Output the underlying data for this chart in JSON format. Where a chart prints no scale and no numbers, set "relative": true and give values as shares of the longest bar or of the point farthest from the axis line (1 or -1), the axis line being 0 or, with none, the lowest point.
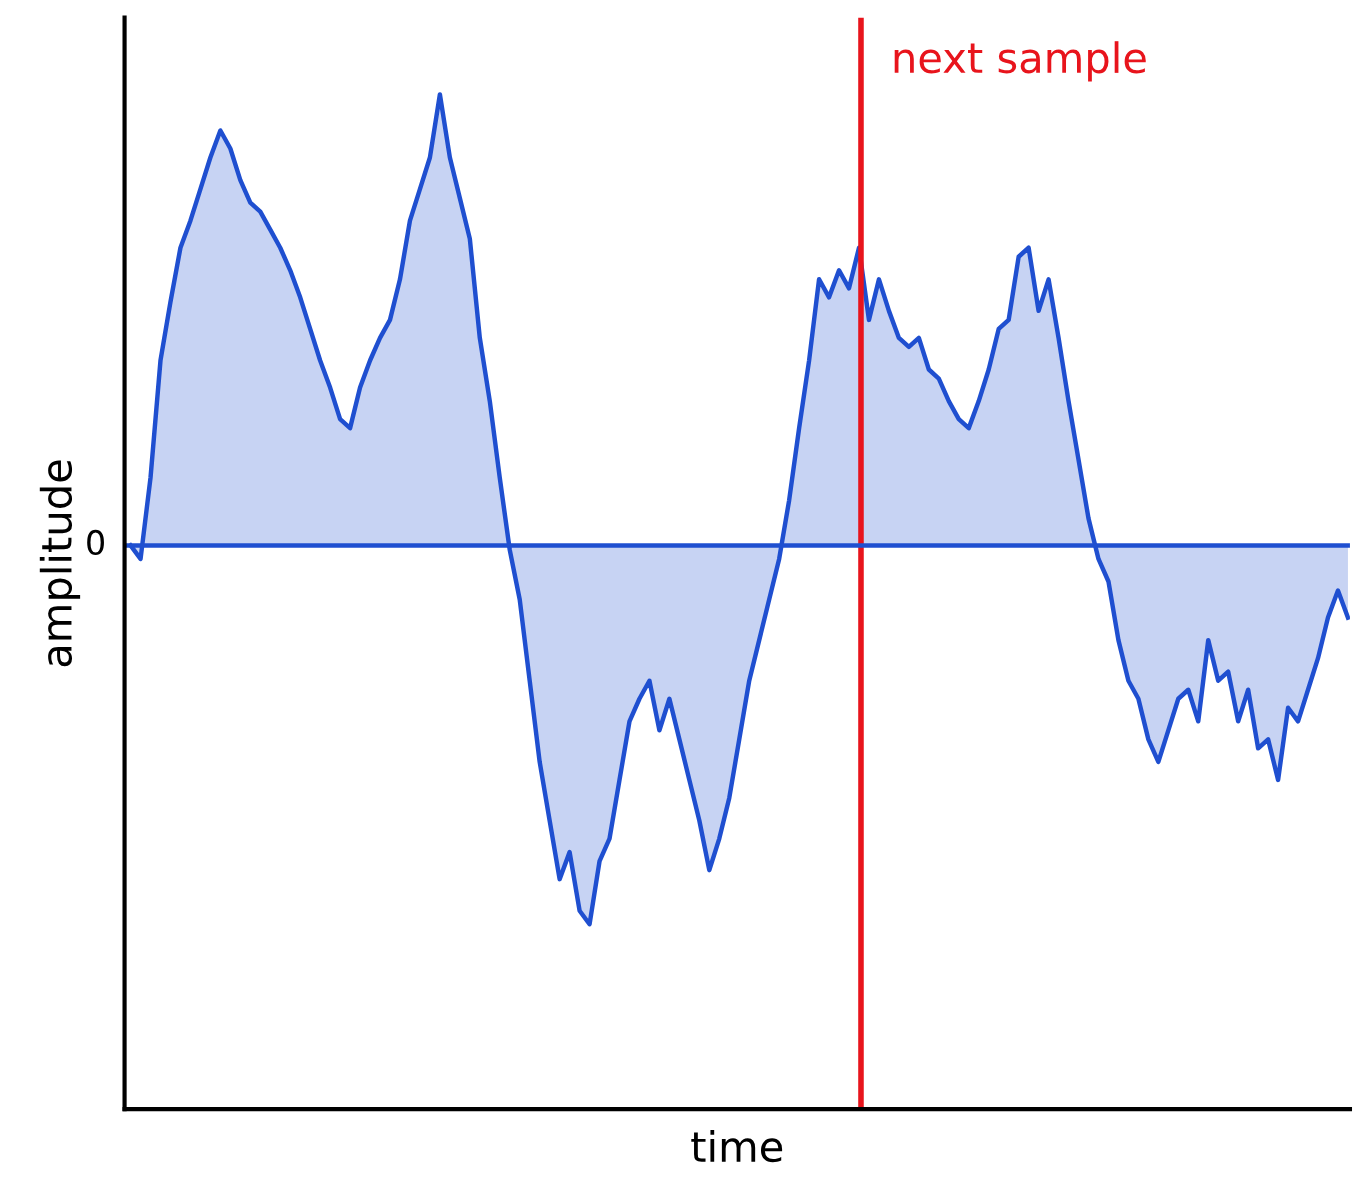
{
  "chart_data": {
    "type": "area",
    "relative": true,
    "xlabel": "time",
    "ylabel": "amplitude",
    "annotations": [
      "0",
      "next sample"
    ],
    "categories": [
      null,
      null,
      null,
      null,
      null,
      null,
      null,
      null,
      null,
      null,
      null,
      null,
      null,
      null,
      null,
      null,
      null,
      null,
      null,
      null,
      null,
      null,
      null,
      null,
      null,
      null,
      null,
      null,
      null,
      null,
      null,
      null,
      null,
      null,
      null,
      null,
      null,
      null,
      null,
      null,
      null,
      null,
      null,
      null,
      null,
      null,
      null,
      null,
      null,
      null,
      null,
      null,
      null,
      null,
      null,
      null,
      null,
      null,
      null,
      null,
      null,
      null,
      null,
      null,
      null,
      null,
      null,
      null,
      null,
      null,
      null,
      null,
      null,
      null,
      null,
      null,
      null,
      null,
      null,
      null,
      null,
      null,
      null,
      null,
      null,
      null,
      null,
      null,
      null,
      null,
      null,
      null,
      null,
      null,
      null,
      null,
      null,
      null,
      null,
      null,
      null,
      null,
      null,
      null,
      null,
      null,
      null,
      null,
      null,
      null,
      null,
      null,
      null,
      null,
      null,
      null,
      null,
      null,
      null,
      null,
      null,
      null,
      null
    ],
    "series": [
      {
        "color": "#1f4fd0",
        "values": [
          0,
          -0.03,
          0.15,
          0.41,
          0.54,
          0.66,
          0.72,
          0.79,
          0.86,
          0.92,
          0.88,
          0.81,
          0.76,
          0.74,
          0.7,
          0.66,
          0.61,
          0.55,
          0.48,
          0.41,
          0.35,
          0.28,
          0.26,
          0.35,
          0.41,
          0.46,
          0.5,
          0.59,
          0.72,
          0.79,
          0.86,
          1.0,
          0.86,
          0.77,
          0.68,
          0.46,
          0.32,
          0.15,
          -0.01,
          -0.12,
          -0.3,
          -0.48,
          -0.61,
          -0.74,
          -0.68,
          -0.81,
          -0.84,
          -0.7,
          -0.65,
          -0.52,
          -0.39,
          -0.34,
          -0.3,
          -0.41,
          -0.34,
          -0.43,
          -0.52,
          -0.61,
          -0.72,
          -0.65,
          -0.56,
          -0.43,
          -0.3,
          -0.21,
          -0.12,
          -0.03,
          0.1,
          0.26,
          0.41,
          0.59,
          0.55,
          0.61,
          0.57,
          0.66,
          0.5,
          0.59,
          0.52,
          0.46,
          0.44,
          0.46,
          0.39,
          0.37,
          0.32,
          0.28,
          0.26,
          0.32,
          0.39,
          0.48,
          0.5,
          0.64,
          0.66,
          0.52,
          0.59,
          0.46,
          0.32,
          0.19,
          0.06,
          -0.03,
          -0.08,
          -0.21,
          -0.3,
          -0.34,
          -0.43,
          -0.48,
          -0.41,
          -0.34,
          -0.32,
          -0.39,
          -0.21,
          -0.3,
          -0.28,
          -0.39,
          -0.32,
          -0.45,
          -0.43,
          -0.52,
          -0.36,
          -0.39,
          -0.32,
          -0.25,
          -0.16,
          -0.1,
          -0.16
        ]
      }
    ],
    "ref_lines": [
      {
        "axis": "y",
        "value": 0,
        "color": "#1f4fd0"
      }
    ]
  }
}
